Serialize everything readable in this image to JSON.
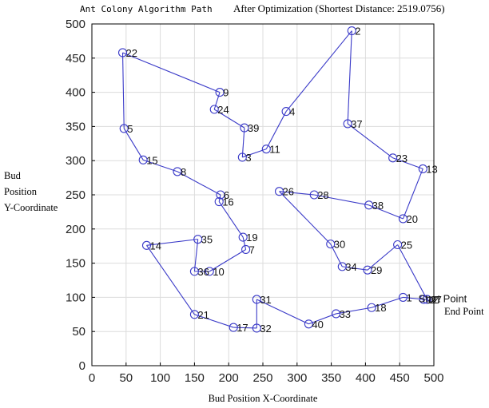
{
  "chart_data": {
    "type": "scatter",
    "title": "Ant Colony Algorithm Path",
    "title_suffix": "After Optimization (Shortest Distance: 2519.0756)",
    "xlabel": "Bud Position X-Coordinate",
    "ylabel_lines": [
      "Bud",
      "Position",
      "Y-Coordinate"
    ],
    "end_point_label": "End Point",
    "xlim": [
      0,
      500
    ],
    "ylim": [
      0,
      500
    ],
    "xticks": [
      0,
      50,
      100,
      150,
      200,
      250,
      300,
      350,
      400,
      450,
      500
    ],
    "yticks": [
      0,
      50,
      100,
      150,
      200,
      250,
      300,
      350,
      400,
      450,
      500
    ],
    "grid": true,
    "line_color": "#3a3ac8",
    "points": [
      {
        "label": "1",
        "x": 455,
        "y": 100
      },
      {
        "label": "2",
        "x": 380,
        "y": 490
      },
      {
        "label": "3",
        "x": 220,
        "y": 305
      },
      {
        "label": "4",
        "x": 284,
        "y": 372
      },
      {
        "label": "5",
        "x": 47,
        "y": 347
      },
      {
        "label": "6",
        "x": 188,
        "y": 250
      },
      {
        "label": "7",
        "x": 225,
        "y": 170
      },
      {
        "label": "8",
        "x": 125,
        "y": 284
      },
      {
        "label": "9",
        "x": 187,
        "y": 400
      },
      {
        "label": "10",
        "x": 172,
        "y": 138
      },
      {
        "label": "11",
        "x": 255,
        "y": 317
      },
      {
        "label": "12",
        "x": 485,
        "y": 97
      },
      {
        "label": "13",
        "x": 484,
        "y": 288
      },
      {
        "label": "14",
        "x": 80,
        "y": 176
      },
      {
        "label": "15",
        "x": 75,
        "y": 301
      },
      {
        "label": "16",
        "x": 186,
        "y": 240
      },
      {
        "label": "17",
        "x": 207,
        "y": 56
      },
      {
        "label": "18",
        "x": 409,
        "y": 85
      },
      {
        "label": "19",
        "x": 221,
        "y": 188
      },
      {
        "label": "20",
        "x": 455,
        "y": 215
      },
      {
        "label": "21",
        "x": 150,
        "y": 75
      },
      {
        "label": "22",
        "x": 45,
        "y": 458
      },
      {
        "label": "23",
        "x": 440,
        "y": 304
      },
      {
        "label": "24",
        "x": 179,
        "y": 375
      },
      {
        "label": "25",
        "x": 447,
        "y": 177
      },
      {
        "label": "26",
        "x": 274,
        "y": 255
      },
      {
        "label": "27",
        "x": 490,
        "y": 97
      },
      {
        "label": "28",
        "x": 325,
        "y": 250
      },
      {
        "label": "29",
        "x": 403,
        "y": 140
      },
      {
        "label": "30",
        "x": 349,
        "y": 178
      },
      {
        "label": "31",
        "x": 241,
        "y": 97
      },
      {
        "label": "32",
        "x": 241,
        "y": 55
      },
      {
        "label": "33",
        "x": 357,
        "y": 76
      },
      {
        "label": "34",
        "x": 366,
        "y": 145
      },
      {
        "label": "35",
        "x": 155,
        "y": 185
      },
      {
        "label": "36",
        "x": 150,
        "y": 138
      },
      {
        "label": "37",
        "x": 374,
        "y": 354
      },
      {
        "label": "38",
        "x": 405,
        "y": 235
      },
      {
        "label": "39",
        "x": 223,
        "y": 348
      },
      {
        "label": "40",
        "x": 317,
        "y": 61
      },
      {
        "label": "Start Point",
        "x": 475,
        "y": 99
      }
    ],
    "route": [
      "27",
      "12",
      "1",
      "18",
      "33",
      "40",
      "31",
      "32",
      "17",
      "21",
      "14",
      "35",
      "36",
      "10",
      "7",
      "19",
      "16",
      "6",
      "8",
      "15",
      "5",
      "22",
      "9",
      "24",
      "39",
      "3",
      "11",
      "4",
      "2",
      "37",
      "23",
      "13",
      "20",
      "38",
      "28",
      "26",
      "30",
      "34",
      "29",
      "25",
      "27"
    ],
    "end_point_xy": [
      493,
      94
    ]
  }
}
